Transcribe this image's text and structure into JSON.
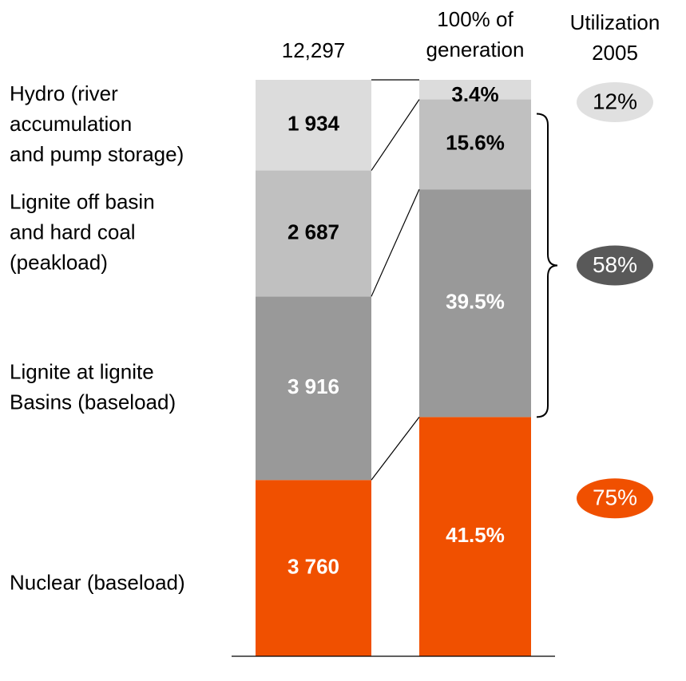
{
  "chart_data": {
    "type": "stacked_bar",
    "categories": [
      "12,297",
      "100% of\ngeneration"
    ],
    "series": [
      {
        "name": "Nuclear (baseload)",
        "color": "#f05000",
        "label_color": "#ffffff",
        "values": [
          3760,
          41.5
        ],
        "value_labels": [
          "3 760",
          "41.5%"
        ]
      },
      {
        "name": "Lignite at lignite\nBasins (baseload)",
        "color": "#999999",
        "label_color": "#ffffff",
        "values": [
          3916,
          39.5
        ],
        "value_labels": [
          "3 916",
          "39.5%"
        ]
      },
      {
        "name": "Lignite off basin\nand hard coal\n(peakload)",
        "color": "#c0c0c0",
        "label_color": "#000000",
        "values": [
          2687,
          15.6
        ],
        "value_labels": [
          "2 687",
          "15.6%"
        ]
      },
      {
        "name": "Hydro (river\naccumulation\nand pump storage)",
        "color": "#dcdcdc",
        "label_color": "#000000",
        "values": [
          1934,
          3.4
        ],
        "value_labels": [
          "1 934",
          "3.4%"
        ]
      }
    ],
    "utilization": {
      "title": "Utilization\n2005",
      "values": [
        75,
        58,
        12
      ],
      "value_labels": [
        "75%",
        "58%",
        "12%"
      ],
      "colors": [
        "#f05000",
        "#595959",
        "#e0e0e0"
      ],
      "label_colors": [
        "#ffffff",
        "#ffffff",
        "#000000"
      ]
    }
  }
}
